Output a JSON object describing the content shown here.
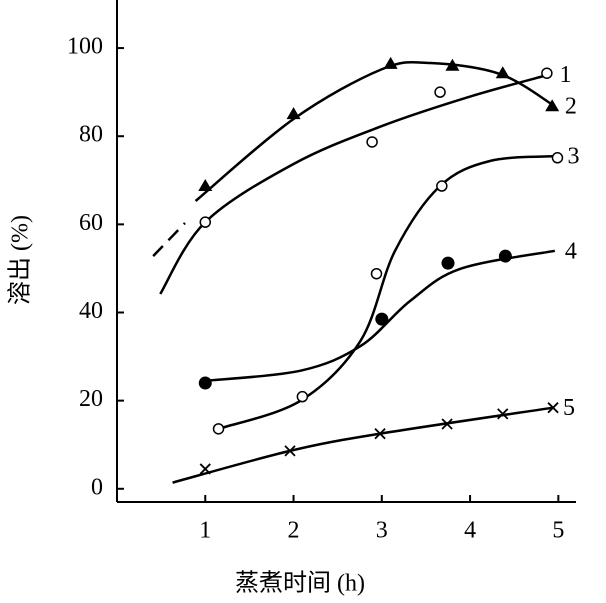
{
  "chart_data": {
    "type": "scatter_fit",
    "x_label": "蒸煮时间 (h)",
    "y_label": "溶出 (%)",
    "xlim": [
      0,
      5.2
    ],
    "xticks": [
      1,
      2,
      3,
      4,
      5
    ],
    "ylim": [
      -3,
      110
    ],
    "yticks": [
      0,
      20,
      40,
      60,
      80,
      100
    ],
    "series": [
      {
        "name": "1",
        "marker": "open-circle",
        "color": "#000000",
        "x": [
          1,
          2.89,
          3.66,
          4.87
        ],
        "values": [
          60.5,
          78.7,
          90,
          94.3
        ],
        "fit_x": [
          0.49,
          1,
          2,
          3,
          4,
          4.9
        ],
        "fit_values": [
          44.2,
          60.5,
          73.7,
          82.3,
          89,
          94
        ],
        "extension_x": [
          0.41,
          0.77
        ],
        "extension_values": [
          52.8,
          60.3
        ]
      },
      {
        "name": "2",
        "marker": "triangle",
        "color": "#000000",
        "x": [
          1,
          2,
          3.1,
          3.8,
          4.37,
          4.93
        ],
        "values": [
          68.7,
          85,
          96.4,
          96,
          94.3,
          86.8
        ],
        "fit_x": [
          0.89,
          2,
          3,
          3.55,
          4.34,
          4.96
        ],
        "fit_values": [
          65.3,
          83.9,
          95.2,
          96.6,
          94.1,
          86.8
        ]
      },
      {
        "name": "3",
        "marker": "open-circle",
        "color": "#000000",
        "x": [
          1.15,
          2.1,
          2.94,
          3.68,
          4.99
        ],
        "values": [
          13.6,
          20.9,
          48.8,
          68.7,
          75.1
        ],
        "fit_x": [
          1.15,
          2.08,
          2.76,
          3.15,
          3.66,
          4.23,
          4.99
        ],
        "fit_values": [
          13.6,
          20,
          33.6,
          54,
          68.7,
          74.4,
          75.5
        ]
      },
      {
        "name": "4",
        "marker": "filled-circle",
        "color": "#000000",
        "x": [
          1,
          3,
          3.75,
          4.4
        ],
        "values": [
          24,
          38.5,
          51.2,
          52.8
        ],
        "fit_x": [
          1,
          2.08,
          2.76,
          3.32,
          3.89,
          4.96
        ],
        "fit_values": [
          24.5,
          26.8,
          32.4,
          42.6,
          49.9,
          54
        ]
      },
      {
        "name": "5",
        "marker": "cross",
        "color": "#000000",
        "x": [
          1,
          1.96,
          2.98,
          3.74,
          4.37,
          4.94
        ],
        "values": [
          4.5,
          8.6,
          12.5,
          14.7,
          17,
          18.4
        ],
        "fit_x": [
          0.63,
          1.96,
          2.98,
          4.94
        ],
        "fit_values": [
          1.4,
          8.6,
          12.5,
          18.4
        ]
      }
    ]
  }
}
